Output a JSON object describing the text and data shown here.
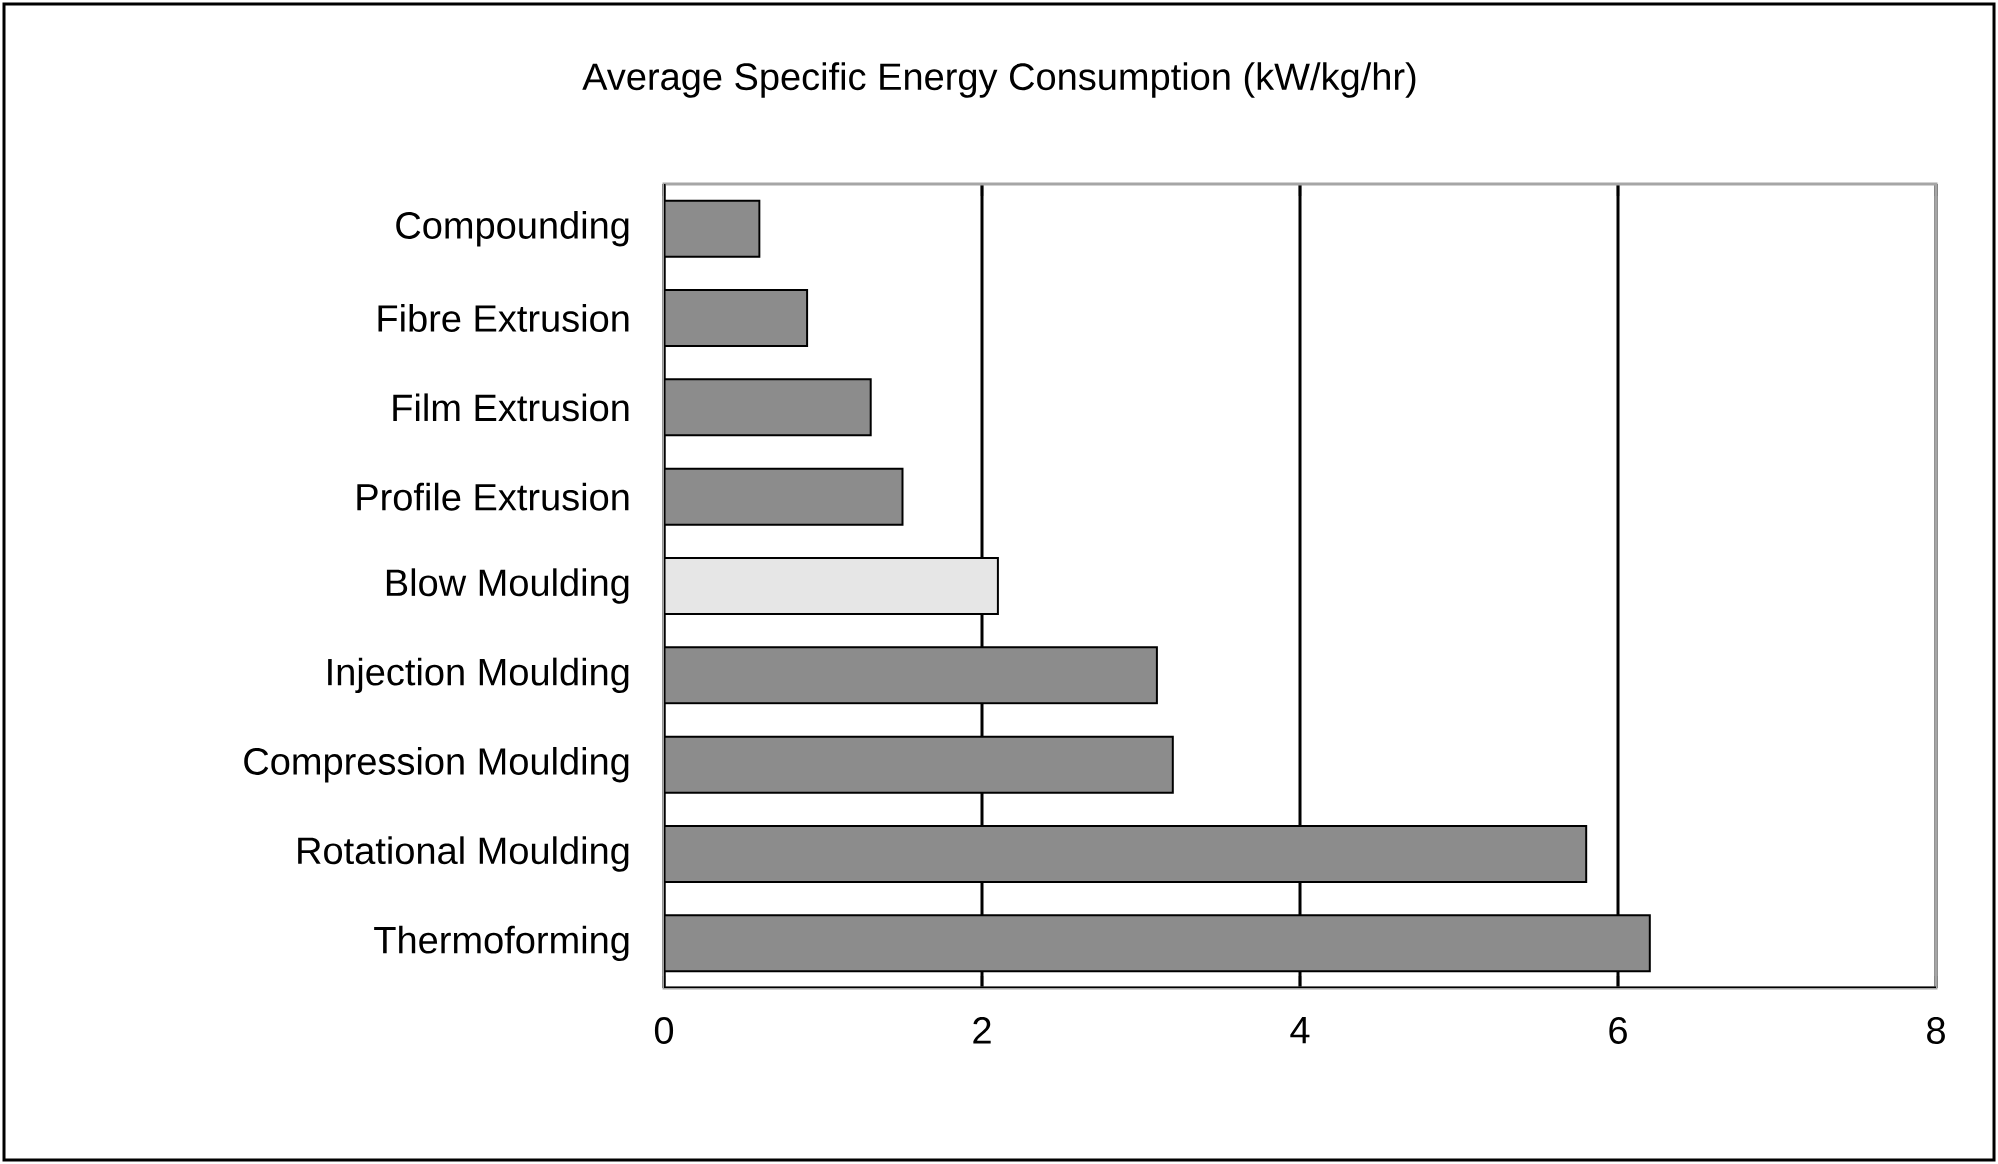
{
  "chart_data": {
    "type": "bar",
    "orientation": "horizontal",
    "title": "Average Specific Energy Consumption (kW/kg/hr)",
    "categories": [
      "Compounding",
      "Fibre Extrusion",
      "Film Extrusion",
      "Profile Extrusion",
      "Blow Moulding",
      "Injection Moulding",
      "Compression Moulding",
      "Rotational Moulding",
      "Thermoforming"
    ],
    "values": [
      0.6,
      0.9,
      1.3,
      1.5,
      2.1,
      3.1,
      3.2,
      5.8,
      6.2
    ],
    "colors": [
      "#8c8c8c",
      "#8c8c8c",
      "#8c8c8c",
      "#8c8c8c",
      "#e6e6e6",
      "#8c8c8c",
      "#8c8c8c",
      "#8c8c8c",
      "#8c8c8c"
    ],
    "xlim": [
      0,
      8
    ],
    "xticks": [
      0,
      2,
      4,
      6,
      8
    ],
    "grid": "x"
  }
}
